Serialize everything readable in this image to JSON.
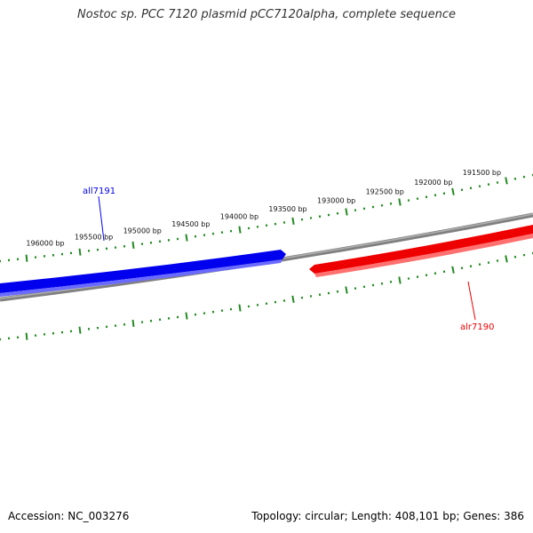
{
  "title": "Nostoc sp. PCC 7120 plasmid pCC7120alpha, complete sequence",
  "footer": {
    "accession": "Accession: NC_003276",
    "summary": "Topology: circular; Length: 408,101 bp; Genes: 386"
  },
  "ruler_labels": [
    "196000 bp",
    "195500 bp",
    "195000 bp",
    "194500 bp",
    "194000 bp",
    "193500 bp",
    "193000 bp",
    "192500 bp",
    "192000 bp",
    "191500 bp"
  ],
  "genes": [
    {
      "name": "all7191",
      "strand": "reverse",
      "color": "#0000ee"
    },
    {
      "name": "alr7190",
      "strand": "forward",
      "color": "#ee0000"
    }
  ],
  "colors": {
    "backbone": "#808080",
    "ticks": "#228b22",
    "reverse_gene": "#0000ee",
    "forward_gene": "#ee0000"
  }
}
